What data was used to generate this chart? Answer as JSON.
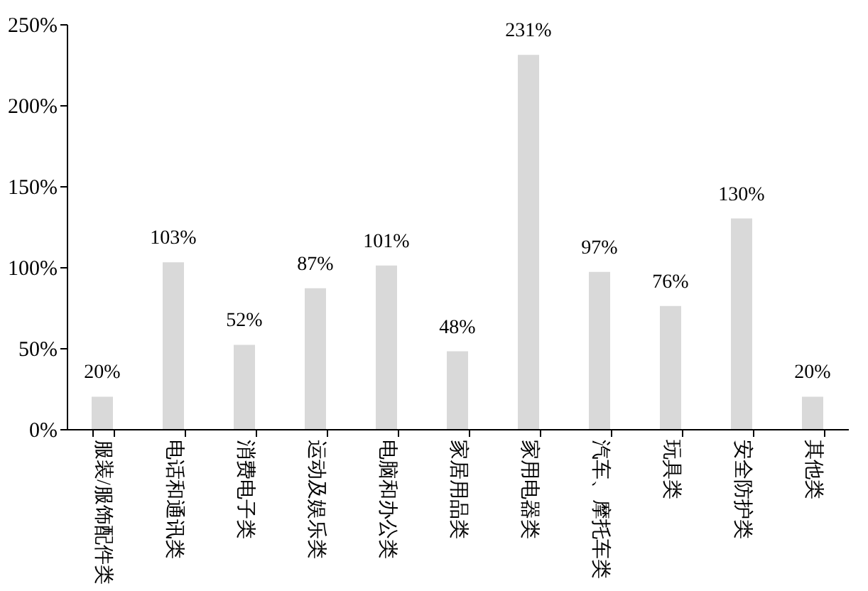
{
  "chart_data": {
    "type": "bar",
    "categories": [
      "服装/服饰配件类",
      "电话和通讯类",
      "消费电子类",
      "运动及娱乐类",
      "电脑和办公类",
      "家居用品类",
      "家用电器类",
      "汽车、摩托车类",
      "玩具类",
      "安全防护类",
      "其他类"
    ],
    "values": [
      20,
      103,
      52,
      87,
      101,
      48,
      231,
      97,
      76,
      130,
      20
    ],
    "value_labels": [
      "20%",
      "103%",
      "52%",
      "87%",
      "101%",
      "48%",
      "231%",
      "97%",
      "76%",
      "130%",
      "20%"
    ],
    "color": "#d9d9d9",
    "ylim": [
      0,
      250
    ],
    "yticks": [
      {
        "value": 0,
        "label": "0%"
      },
      {
        "value": 50,
        "label": "50%"
      },
      {
        "value": 100,
        "label": "100%"
      },
      {
        "value": 150,
        "label": "150%"
      },
      {
        "value": 200,
        "label": "200%"
      },
      {
        "value": 250,
        "label": "250%"
      }
    ],
    "grid": false
  }
}
